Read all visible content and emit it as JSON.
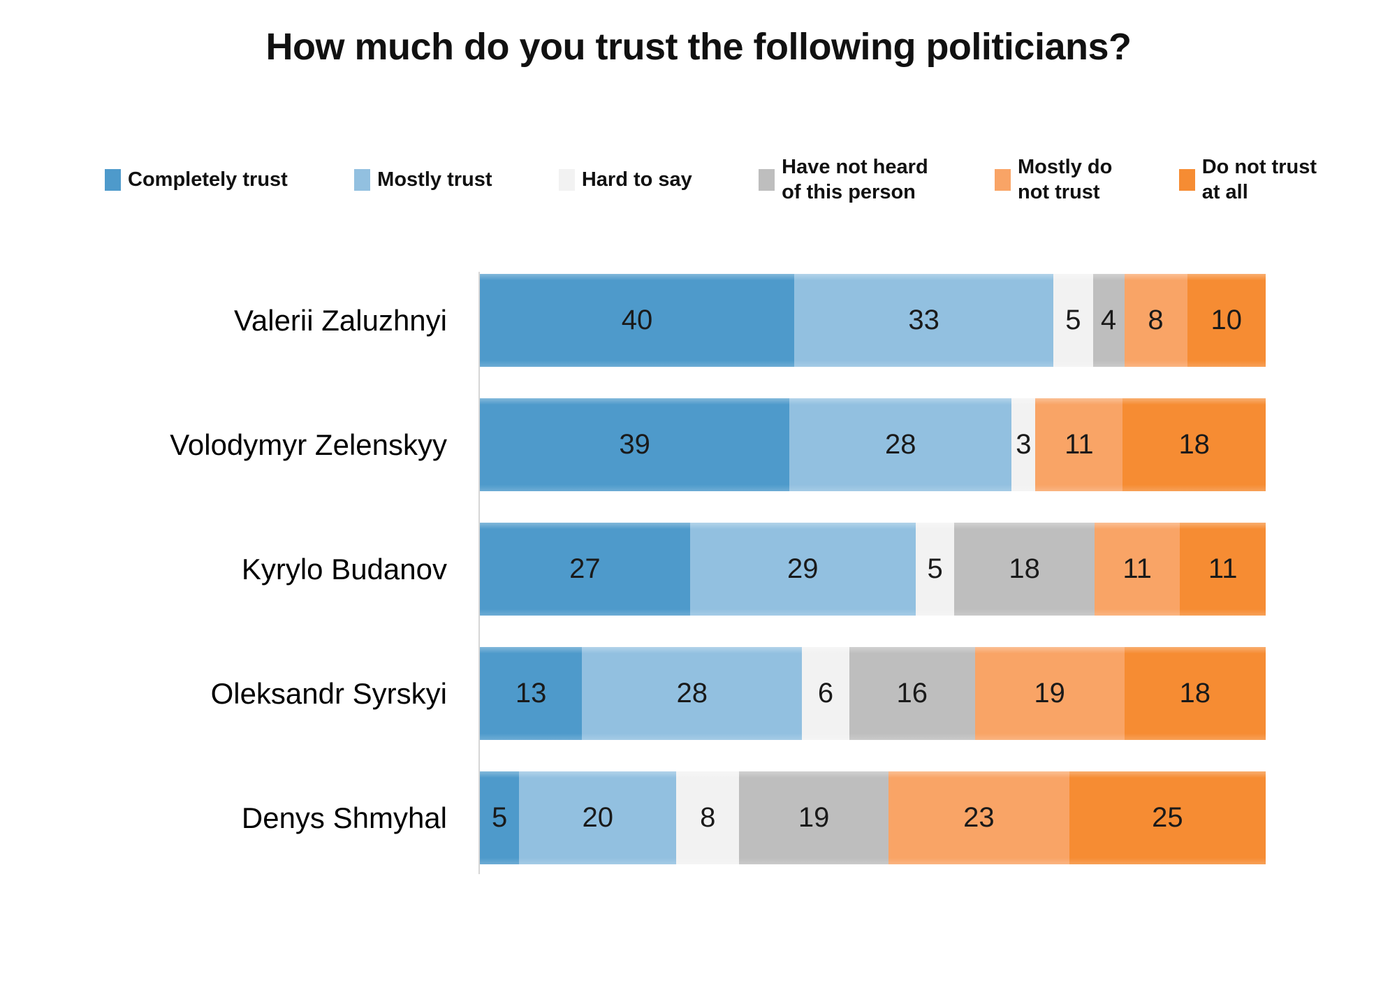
{
  "chart_data": {
    "type": "bar",
    "orientation": "horizontal",
    "stacked": true,
    "title": "How much do you trust the following politicians?",
    "xlabel": "",
    "ylabel": "",
    "xlim": [
      0,
      100
    ],
    "grid": false,
    "legend_position": "top",
    "value_labels_shown": true,
    "categories": [
      "Valerii Zaluzhnyi",
      "Volodymyr Zelenskyy",
      "Kyrylo Budanov",
      "Oleksandr Syrskyi",
      "Denys Shmyhal"
    ],
    "series": [
      {
        "name": "Completely trust",
        "legend_lines": [
          "Completely trust"
        ],
        "color": "#4E9ACB",
        "values": [
          40,
          39,
          27,
          13,
          5
        ]
      },
      {
        "name": "Mostly trust",
        "legend_lines": [
          "Mostly trust"
        ],
        "color": "#92C0E0",
        "values": [
          33,
          28,
          29,
          28,
          20
        ]
      },
      {
        "name": "Hard to say",
        "legend_lines": [
          "Hard to say"
        ],
        "color": "#F2F2F2",
        "values": [
          5,
          3,
          5,
          6,
          8
        ]
      },
      {
        "name": "Have not heard of this person",
        "legend_lines": [
          "Have not heard",
          "of this person"
        ],
        "color": "#BEBEBE",
        "values": [
          4,
          0,
          18,
          16,
          19
        ]
      },
      {
        "name": "Mostly do not trust",
        "legend_lines": [
          "Mostly do",
          "not trust"
        ],
        "color": "#F9A466",
        "values": [
          8,
          11,
          11,
          19,
          23
        ]
      },
      {
        "name": "Do not trust at all",
        "legend_lines": [
          "Do not trust",
          "at all"
        ],
        "color": "#F68C33",
        "values": [
          10,
          18,
          11,
          18,
          25
        ]
      }
    ]
  }
}
